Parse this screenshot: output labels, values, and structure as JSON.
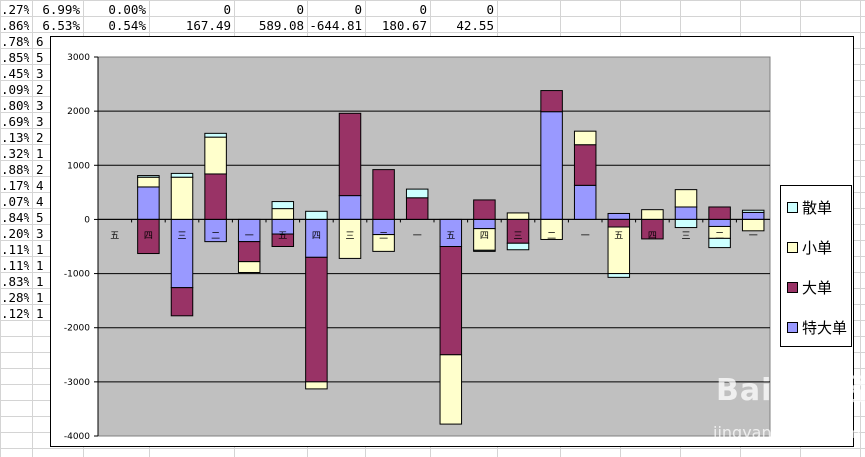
{
  "sheet": {
    "row1": [
      ".27%",
      "6.99%",
      "0.00%",
      "0",
      "0",
      "0",
      "0",
      "0"
    ],
    "row2": [
      ".86%",
      "6.53%",
      "0.54%",
      "167.49",
      "589.08",
      "-644.81",
      "180.67",
      "42.55"
    ],
    "colA": [
      ".78%",
      ".85%",
      ".45%",
      ".09%",
      ".80%",
      ".69%",
      ".13%",
      ".32%",
      ".88%",
      ".17%",
      ".07%",
      ".84%",
      ".20%",
      ".11%",
      ".11%",
      ".83%",
      ".28%",
      ".12%"
    ],
    "colB": [
      "6",
      "5",
      "3",
      "2",
      "3",
      "3",
      "2",
      "1",
      "2",
      "4",
      "4",
      "5",
      "3",
      "1",
      "1",
      "1",
      "1",
      "1"
    ]
  },
  "watermark": {
    "brand": "Bai du 经验",
    "url": "jingyan.baidu.com"
  },
  "chart_data": {
    "type": "bar",
    "stacked": true,
    "title": "",
    "xlabel": "",
    "ylabel": "",
    "ylim": [
      -4000,
      3000
    ],
    "yticks": [
      "3000",
      "2000",
      "1000",
      "0",
      "-1000",
      "-2000",
      "-3000",
      "-4000"
    ],
    "grid": true,
    "legend_position": "right",
    "categories": [
      "五",
      "四",
      "三",
      "二",
      "一",
      "五",
      "四",
      "三",
      "二",
      "一",
      "五",
      "四",
      "三",
      "二",
      "一",
      "五",
      "四",
      "三",
      "二",
      "一"
    ],
    "series": [
      {
        "name": "特大单",
        "color": "#9999ff",
        "values": [
          0,
          600,
          -1260,
          -410,
          -410,
          -270,
          -700,
          440,
          -280,
          0,
          -500,
          -170,
          0,
          1990,
          630,
          110,
          0,
          230,
          -130,
          130
        ]
      },
      {
        "name": "大单",
        "color": "#993366",
        "values": [
          0,
          -630,
          -520,
          840,
          -370,
          -230,
          -2300,
          1520,
          920,
          400,
          -2000,
          360,
          -440,
          390,
          750,
          -140,
          -360,
          0,
          230,
          0
        ]
      },
      {
        "name": "小单",
        "color": "#ffffcc",
        "values": [
          0,
          180,
          780,
          680,
          -200,
          200,
          -130,
          -720,
          -310,
          0,
          -1280,
          -400,
          120,
          -370,
          250,
          -860,
          180,
          320,
          -220,
          -210
        ]
      },
      {
        "name": "散单",
        "color": "#ccffff",
        "values": [
          0,
          30,
          70,
          70,
          0,
          130,
          150,
          0,
          0,
          160,
          0,
          -20,
          -120,
          0,
          0,
          -70,
          0,
          -150,
          -170,
          40
        ]
      }
    ],
    "legend_order": [
      "散单",
      "小单",
      "大单",
      "特大单"
    ]
  }
}
